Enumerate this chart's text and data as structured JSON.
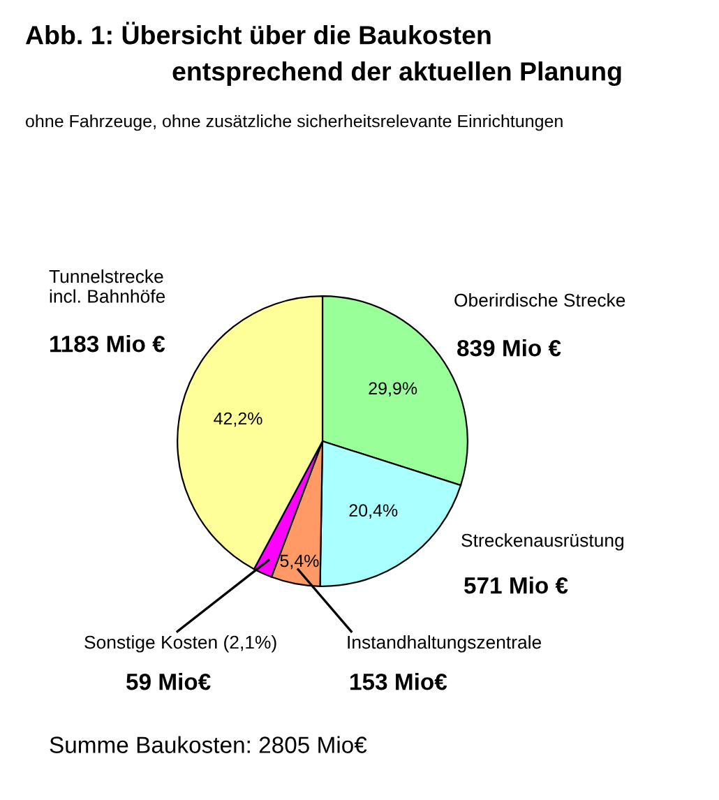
{
  "chart_data": {
    "type": "pie",
    "title": "Abb. 1: Übersicht über die Baukosten\nentsprechend der aktuellen Planung",
    "subtitle": "ohne Fahrzeuge, ohne zusätzliche sicherheitsrelevante Einrichtungen",
    "categories": [
      "Oberirdische Strecke",
      "Streckenausrüstung",
      "Instandhaltungszentrale",
      "Sonstige Kosten (2,1%)",
      "Tunnelstrecke\nincl. Bahnhöfe"
    ],
    "values": [
      839,
      571,
      153,
      59,
      1183
    ],
    "colors": [
      "#99ff99",
      "#aaffff",
      "#ff9966",
      "#ff00ff",
      "#ffff99"
    ],
    "value_labels": [
      "839 Mio €",
      "571 Mio €",
      "153 Mio€",
      "59 Mio€",
      "1183 Mio €"
    ],
    "annotations": [
      {
        "text": "29,9%",
        "x": "Oberirdische Strecke"
      },
      {
        "text": "20,4%",
        "x": "Streckenausrüstung"
      },
      {
        "text": "5,4%",
        "x": "Instandhaltungszentrale"
      },
      {
        "text": "42,2%",
        "x": "Tunnelstrecke\nincl. Bahnhöfe"
      },
      "Summe Baukosten: 2805 Mio€"
    ]
  }
}
